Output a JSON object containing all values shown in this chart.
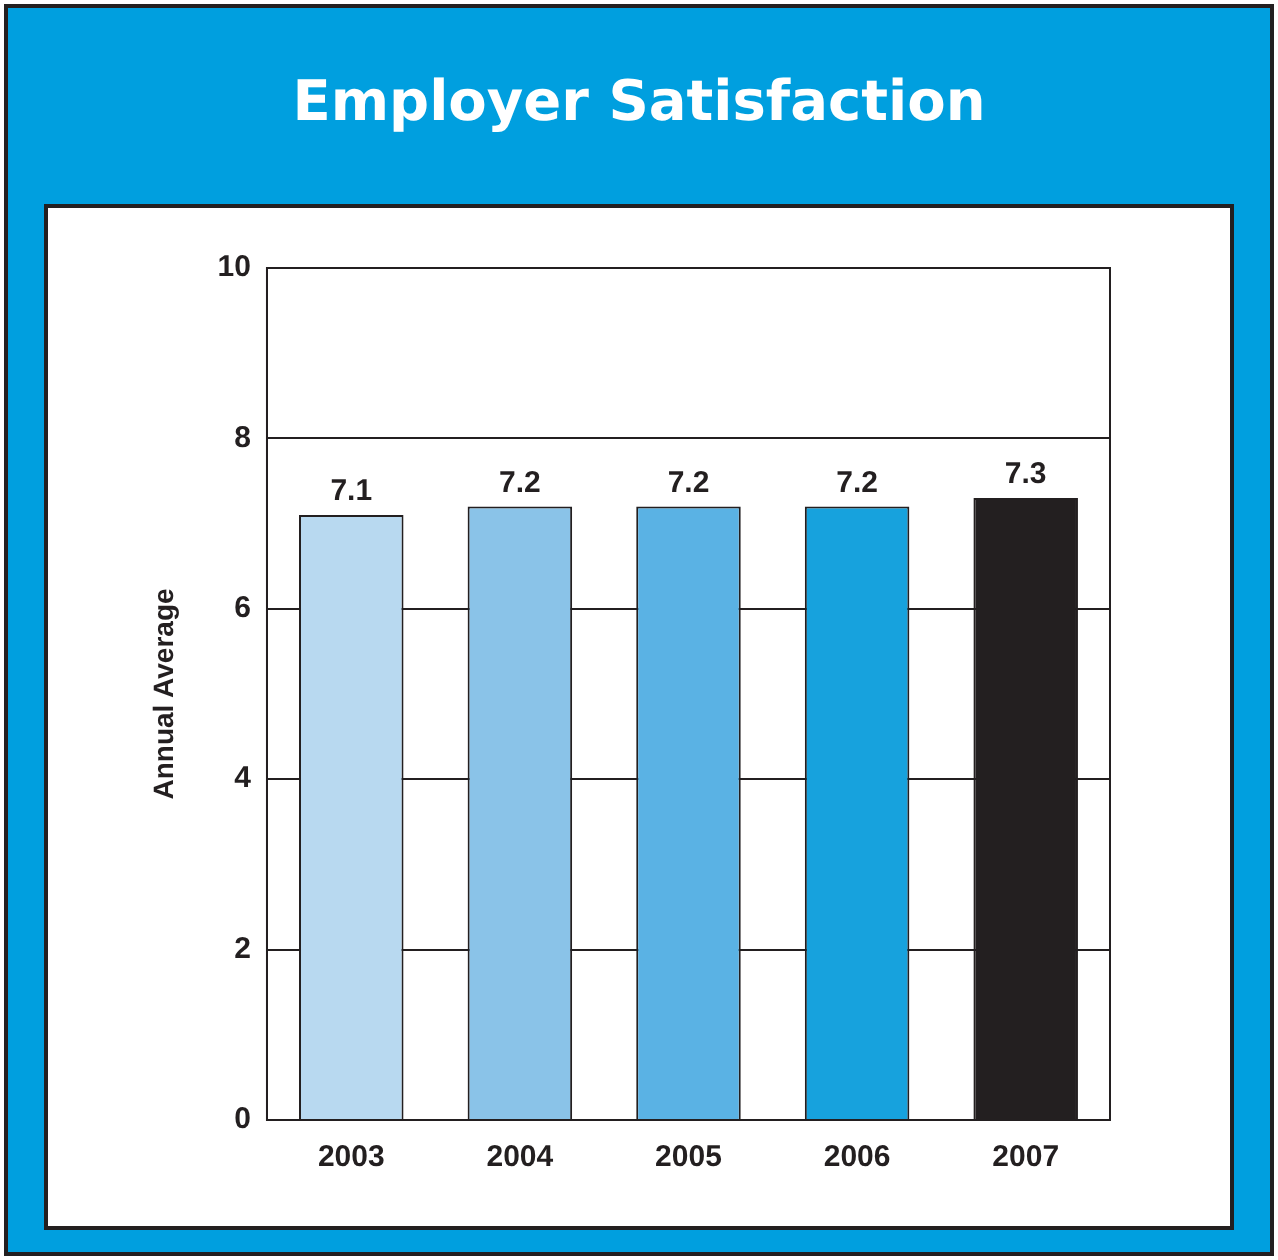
{
  "chart_data": {
    "type": "bar",
    "title": "Employer Satisfaction",
    "ylabel": "Annual Average",
    "categories": [
      "2003",
      "2004",
      "2005",
      "2006",
      "2007"
    ],
    "values": [
      7.1,
      7.2,
      7.2,
      7.2,
      7.3
    ],
    "colors": [
      "#b8d9f0",
      "#8ac3e8",
      "#5ab2e4",
      "#17a2dd",
      "#231f20"
    ],
    "ylim": [
      0,
      10
    ],
    "yticks": [
      0,
      2,
      4,
      6,
      8,
      10
    ],
    "grid": "y",
    "data_labels": true,
    "legend": false
  }
}
